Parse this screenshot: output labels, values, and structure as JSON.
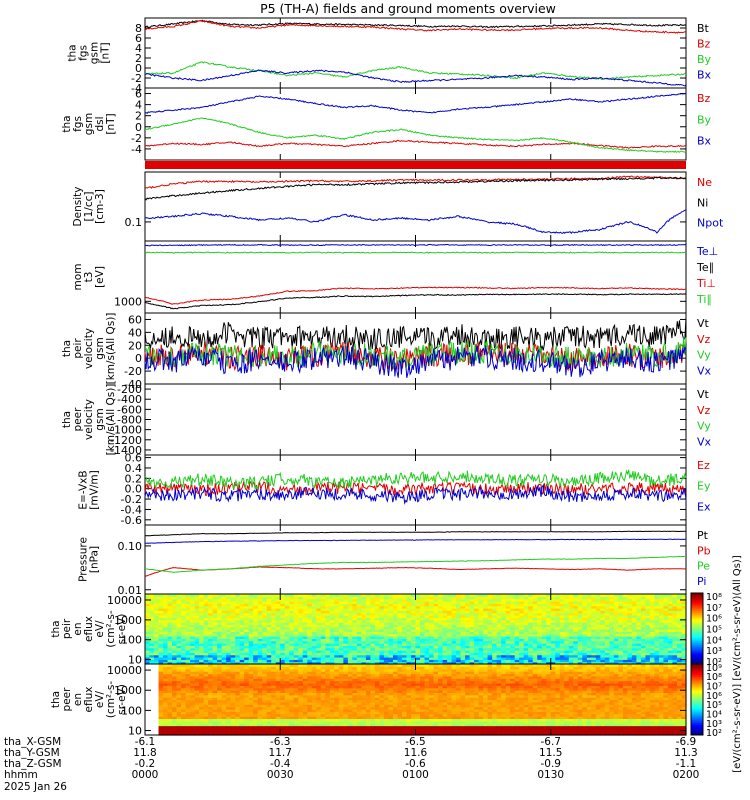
{
  "title": "P5 (TH-A) fields and ground moments overview",
  "colors": {
    "black": "#000000",
    "red": "#e00000",
    "green": "#22cc22",
    "blue": "#0000cc"
  },
  "chart_data": [
    {
      "type": "line",
      "id": "fgs_gsm",
      "ylabel": [
        "tha",
        "fgs",
        "gsm",
        "[nT]"
      ],
      "ylim": [
        -4,
        10
      ],
      "yticks": [
        "8",
        "6",
        "4",
        "2",
        "0",
        "-2",
        "-4"
      ],
      "ytickvals": [
        8,
        6,
        4,
        2,
        0,
        -2,
        -4
      ],
      "series": [
        {
          "name": "Bt",
          "color": "#000000",
          "values": [
            8.2,
            8.8,
            9.5,
            8.7,
            8.6,
            8.9,
            8.8,
            8.7,
            8.6,
            8.5,
            8.3,
            8.4,
            8.2,
            8.3,
            8.4,
            8.6,
            8.8,
            8.7,
            8.5,
            8.6
          ]
        },
        {
          "name": "Bz",
          "color": "#e00000",
          "values": [
            7.8,
            8.3,
            9.4,
            8.3,
            8.0,
            8.6,
            8.5,
            8.3,
            8.2,
            7.8,
            7.5,
            7.8,
            7.6,
            7.6,
            7.9,
            8.0,
            8.0,
            7.5,
            7.2,
            7.1
          ]
        },
        {
          "name": "By",
          "color": "#22cc22",
          "values": [
            -1.2,
            -1.0,
            1.2,
            0.2,
            -0.5,
            -1.5,
            -1.0,
            -1.8,
            -0.5,
            0.2,
            -1.0,
            -1.2,
            -1.5,
            -2.0,
            -1.0,
            -1.7,
            -2.2,
            -1.8,
            -1.5,
            -1.2
          ]
        },
        {
          "name": "Bx",
          "color": "#0000cc",
          "values": [
            -1.2,
            -2.0,
            -2.5,
            -1.5,
            -0.5,
            -1.0,
            -0.5,
            -0.8,
            -2.0,
            -2.8,
            -2.5,
            -2.3,
            -2.0,
            -1.5,
            -1.8,
            -2.3,
            -2.0,
            -2.5,
            -3.0,
            -3.5
          ]
        }
      ]
    },
    {
      "type": "line",
      "id": "fgs_dsl",
      "ylabel": [
        "tha",
        "fgs",
        "gsm",
        "dsl",
        "[nT]"
      ],
      "ylim": [
        -6,
        7
      ],
      "yticks": [
        "6",
        "4",
        "2",
        "0",
        "-2",
        "-4"
      ],
      "ytickvals": [
        6,
        4,
        2,
        0,
        -2,
        -4
      ],
      "series": [
        {
          "name": "Bz",
          "color": "#e00000",
          "values": [
            -3.5,
            -3.0,
            -3.2,
            -2.8,
            -3.5,
            -3.0,
            -3.2,
            -3.5,
            -3.0,
            -2.5,
            -2.8,
            -3.0,
            -3.3,
            -3.5,
            -3.2,
            -3.0,
            -3.4,
            -3.8,
            -3.5,
            -3.5
          ]
        },
        {
          "name": "By",
          "color": "#22cc22",
          "values": [
            -0.5,
            0.5,
            1.6,
            0.5,
            -1.0,
            -2.0,
            -1.5,
            -2.2,
            -1.0,
            -0.5,
            -1.5,
            -2.0,
            -2.3,
            -2.5,
            -2.0,
            -2.8,
            -3.8,
            -4.2,
            -4.5,
            -4.5
          ]
        },
        {
          "name": "Bx",
          "color": "#0000cc",
          "values": [
            2.5,
            3.0,
            3.5,
            4.5,
            5.5,
            5.0,
            4.2,
            3.5,
            3.8,
            3.0,
            2.5,
            3.2,
            3.5,
            4.0,
            4.5,
            5.0,
            4.5,
            5.0,
            5.5,
            6.0
          ]
        }
      ]
    },
    {
      "type": "line",
      "id": "density",
      "ylabel": [
        "Density",
        "[1/cc]",
        "[cm-3]"
      ],
      "scale": "log",
      "ylim": [
        0.04,
        1.1
      ],
      "yticks": [
        "0.1"
      ],
      "ytickvals": [
        0.1
      ],
      "series": [
        {
          "name": "Ne",
          "color": "#e00000",
          "values": [
            0.5,
            0.62,
            0.7,
            0.7,
            0.68,
            0.7,
            0.72,
            0.7,
            0.72,
            0.75,
            0.74,
            0.75,
            0.76,
            0.77,
            0.78,
            0.8,
            0.8,
            0.9,
            0.85,
            0.8
          ]
        },
        {
          "name": "Ni",
          "color": "#000000",
          "values": [
            0.3,
            0.35,
            0.4,
            0.45,
            0.5,
            0.55,
            0.6,
            0.6,
            0.62,
            0.65,
            0.66,
            0.68,
            0.7,
            0.72,
            0.74,
            0.75,
            0.78,
            0.8,
            0.82,
            0.82
          ]
        },
        {
          "name": "Npot",
          "color": "#0000cc",
          "values": [
            0.12,
            0.13,
            0.15,
            0.13,
            0.11,
            0.12,
            0.1,
            0.14,
            0.11,
            0.12,
            0.11,
            0.13,
            0.1,
            0.09,
            0.06,
            0.06,
            0.07,
            0.1,
            0.06,
            0.18
          ]
        }
      ]
    },
    {
      "type": "line",
      "id": "temperature",
      "ylabel": [
        "mom",
        "t3",
        "[eV]"
      ],
      "scale": "log",
      "ylim": [
        600,
        14000
      ],
      "yticks": [
        "1000"
      ],
      "ytickvals": [
        1000
      ],
      "series": [
        {
          "name": "Te⊥",
          "color": "#0000cc",
          "values": [
            11500,
            11600,
            11700,
            11800,
            11800,
            11700,
            11700,
            11800,
            11800,
            11700,
            11800,
            11800,
            11700,
            11800,
            11700,
            11800,
            11700,
            11800,
            11700,
            11800
          ]
        },
        {
          "name": "Te∥",
          "color": "#000000",
          "values": [
            950,
            720,
            830,
            860,
            980,
            1150,
            1190,
            1260,
            1240,
            1290,
            1330,
            1320,
            1350,
            1350,
            1370,
            1370,
            1340,
            1360,
            1360,
            1380
          ]
        },
        {
          "name": "Ti⊥",
          "color": "#e00000",
          "values": [
            1200,
            880,
            1060,
            1100,
            1250,
            1550,
            1600,
            1790,
            1720,
            1780,
            1840,
            1830,
            1800,
            1760,
            1820,
            1810,
            1740,
            1800,
            1720,
            1690
          ]
        },
        {
          "name": "Ti∥",
          "color": "#22cc22",
          "values": [
            8500,
            8400,
            8500,
            8400,
            8500,
            8400,
            8500,
            8400,
            8400,
            8500,
            8400,
            8500,
            8400,
            8500,
            8400,
            8400,
            8500,
            8400,
            8500,
            8400
          ]
        }
      ]
    },
    {
      "type": "line",
      "id": "peir_velocity",
      "ylabel": [
        "tha",
        "peir",
        "velocity",
        "gsm",
        "[km/s(All Qs)]"
      ],
      "ylim": [
        -40,
        70
      ],
      "yticks": [
        "60",
        "40",
        "20",
        "0",
        "-20",
        "-40"
      ],
      "ytickvals": [
        60,
        40,
        20,
        0,
        -20,
        -40
      ],
      "series": [
        {
          "name": "Vt",
          "color": "#000000",
          "values": [
            30,
            35,
            28,
            40,
            30,
            33,
            30,
            35,
            28,
            32,
            30,
            38,
            30,
            33,
            28,
            35,
            30,
            40,
            32,
            45
          ]
        },
        {
          "name": "Vz",
          "color": "#e00000",
          "values": [
            5,
            2,
            8,
            0,
            3,
            -2,
            5,
            8,
            2,
            -5,
            3,
            6,
            8,
            5,
            3,
            -3,
            2,
            5,
            0,
            10
          ]
        },
        {
          "name": "Vy",
          "color": "#22cc22",
          "values": [
            5,
            3,
            8,
            2,
            5,
            0,
            8,
            10,
            5,
            -2,
            6,
            8,
            10,
            8,
            5,
            0,
            3,
            6,
            2,
            15
          ]
        },
        {
          "name": "Vx",
          "color": "#0000cc",
          "values": [
            0,
            -5,
            3,
            -10,
            -3,
            -8,
            0,
            3,
            -5,
            -15,
            -3,
            0,
            2,
            -2,
            -5,
            -15,
            -5,
            0,
            -8,
            5
          ]
        }
      ]
    },
    {
      "type": "line",
      "id": "peer_velocity",
      "ylabel": [
        "tha",
        "peer",
        "velocity",
        "gsm",
        "[km/s(All Qs)]"
      ],
      "ylim": [
        -1500,
        -100
      ],
      "yticks": [
        "-200",
        "-400",
        "-600",
        "-800",
        "-1000",
        "-1200",
        "-1400"
      ],
      "ytickvals": [
        -200,
        -400,
        -600,
        -800,
        -1000,
        -1200,
        -1400
      ],
      "series": [
        {
          "name": "Vt",
          "color": "#000000",
          "values": []
        },
        {
          "name": "Vz",
          "color": "#e00000",
          "values": []
        },
        {
          "name": "Vy",
          "color": "#22cc22",
          "values": []
        },
        {
          "name": "Vx",
          "color": "#0000cc",
          "values": []
        }
      ]
    },
    {
      "type": "line",
      "id": "efield",
      "ylabel": [
        "E=-VxB",
        "[mV/m]"
      ],
      "ylim": [
        -0.7,
        0.65
      ],
      "yticks": [
        "0.6",
        "0.4",
        "0.2",
        "0.0",
        "-0.2",
        "-0.4",
        "-0.6"
      ],
      "ytickvals": [
        0.6,
        0.4,
        0.2,
        0,
        -0.2,
        -0.4,
        -0.6
      ],
      "series": [
        {
          "name": "Ez",
          "color": "#e00000",
          "values": [
            0.0,
            0.02,
            -0.02,
            0.0,
            0.03,
            -0.01,
            0.0,
            0.02,
            -0.02,
            0.0,
            0.01,
            0.0,
            -0.01,
            0.02,
            0.0,
            -0.02,
            0.0,
            0.02,
            -0.01,
            0.0
          ]
        },
        {
          "name": "Ey",
          "color": "#22cc22",
          "values": [
            0.15,
            0.12,
            0.18,
            0.1,
            0.12,
            0.2,
            0.15,
            0.1,
            0.18,
            0.22,
            0.2,
            0.25,
            0.2,
            0.15,
            0.18,
            0.12,
            0.2,
            0.25,
            0.15,
            0.2
          ]
        },
        {
          "name": "Ex",
          "color": "#0000cc",
          "values": [
            -0.1,
            -0.12,
            -0.08,
            -0.15,
            -0.1,
            -0.12,
            -0.08,
            -0.1,
            -0.12,
            -0.18,
            -0.1,
            -0.12,
            -0.08,
            -0.1,
            -0.05,
            -0.15,
            -0.12,
            -0.1,
            -0.15,
            -0.12
          ]
        }
      ]
    },
    {
      "type": "line",
      "id": "pressure",
      "ylabel": [
        "Pressure",
        "[nPa]"
      ],
      "scale": "log",
      "ylim": [
        0.008,
        0.3
      ],
      "yticks": [
        "0.10",
        "0.01"
      ],
      "ytickvals": [
        0.1,
        0.01
      ],
      "series": [
        {
          "name": "Pt",
          "color": "#000000",
          "values": [
            0.17,
            0.18,
            0.19,
            0.19,
            0.195,
            0.2,
            0.2,
            0.205,
            0.205,
            0.205,
            0.205,
            0.21,
            0.21,
            0.21,
            0.21,
            0.21,
            0.21,
            0.215,
            0.215,
            0.215
          ]
        },
        {
          "name": "Pb",
          "color": "#e00000",
          "values": [
            0.02,
            0.032,
            0.028,
            0.03,
            0.033,
            0.032,
            0.03,
            0.03,
            0.031,
            0.032,
            0.031,
            0.029,
            0.03,
            0.031,
            0.03,
            0.029,
            0.03,
            0.028,
            0.03,
            0.03
          ]
        },
        {
          "name": "Pe",
          "color": "#22cc22",
          "values": [
            0.03,
            0.025,
            0.028,
            0.03,
            0.034,
            0.037,
            0.04,
            0.042,
            0.042,
            0.043,
            0.044,
            0.045,
            0.046,
            0.048,
            0.05,
            0.05,
            0.052,
            0.052,
            0.055,
            0.058
          ]
        },
        {
          "name": "Pi",
          "color": "#0000cc",
          "values": [
            0.115,
            0.12,
            0.125,
            0.128,
            0.13,
            0.132,
            0.133,
            0.134,
            0.135,
            0.136,
            0.137,
            0.138,
            0.138,
            0.139,
            0.139,
            0.14,
            0.14,
            0.141,
            0.141,
            0.142
          ]
        }
      ]
    },
    {
      "type": "heatmap",
      "id": "peir_eflux",
      "ylabel": [
        "tha",
        "peir",
        "en",
        "eflux",
        "eV/",
        "(cm²-s-",
        "sr-eV)"
      ],
      "scale": "log",
      "ylim": [
        6,
        20000
      ],
      "yticks": [
        "10000",
        "1000",
        "100",
        "10"
      ],
      "ytickvals": [
        10000,
        1000,
        100,
        10
      ]
    },
    {
      "type": "heatmap",
      "id": "peer_eflux",
      "ylabel": [
        "tha",
        "peer",
        "en",
        "eflux",
        "eV/",
        "(cm²-s-",
        "sr-eV)"
      ],
      "scale": "log",
      "ylim": [
        6,
        20000
      ],
      "yticks": [
        "10000",
        "1000",
        "100",
        "10"
      ],
      "ytickvals": [
        10000,
        1000,
        100,
        10
      ]
    },
    {
      "type": "colorbar",
      "id": "cb_upper",
      "ticks": [
        "10⁸",
        "10⁷",
        "10⁶",
        "10⁵",
        "10⁴",
        "10³",
        "10²"
      ],
      "tickvals": [
        8,
        7,
        6,
        5,
        4,
        3,
        2
      ]
    },
    {
      "type": "colorbar",
      "id": "cb_lower",
      "ticks": [
        "10⁹",
        "10⁸",
        "10⁷",
        "10⁶",
        "10⁵",
        "10⁴",
        "10³",
        "10²"
      ],
      "tickvals": [
        9,
        8,
        7,
        6,
        5,
        4,
        3,
        2
      ]
    }
  ],
  "colorbar_label": "[eV/(cm²-s-sr-eV)] [eV/(cm²-s-sr-eV)(All Qs)]",
  "xaxis": {
    "rows": [
      {
        "label": "tha_X-GSM",
        "values": [
          "-6.1",
          "-6.3",
          "-6.5",
          "-6.7",
          "-6.9"
        ]
      },
      {
        "label": "tha_Y-GSM",
        "values": [
          "11.8",
          "11.7",
          "11.6",
          "11.5",
          "11.3"
        ]
      },
      {
        "label": "tha_Z-GSM",
        "values": [
          "-0.2",
          "-0.4",
          "-0.6",
          "-0.9",
          "-1.1"
        ]
      },
      {
        "label": "hhmm",
        "values": [
          "0000",
          "0030",
          "0100",
          "0130",
          "0200"
        ]
      }
    ],
    "date": "2025 Jan 26"
  }
}
